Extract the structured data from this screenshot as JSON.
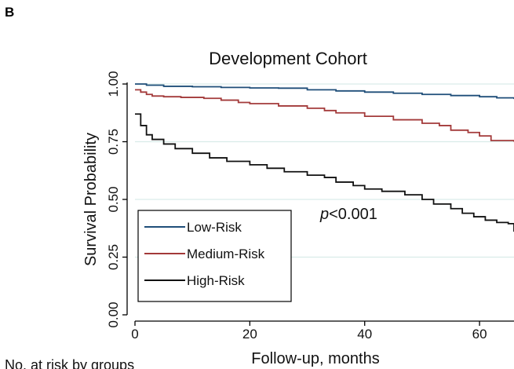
{
  "panel_label": "B",
  "footer_text": "No. at risk by groups",
  "pvalue": {
    "prefix": "p",
    "rest": "<0.001"
  },
  "chart_data": {
    "type": "line",
    "title": "Development Cohort",
    "xlabel": "Follow-up, months",
    "ylabel": "Survival Probability",
    "xlim": [
      0,
      66
    ],
    "ylim": [
      0,
      1
    ],
    "xticks": [
      0,
      20,
      40,
      60
    ],
    "xtick_labels": [
      "0",
      "20",
      "40",
      "60"
    ],
    "yticks": [
      0,
      0.25,
      0.5,
      0.75,
      1
    ],
    "ytick_labels": [
      "0.00",
      "0.25",
      "0.50",
      "0.75",
      "1.00"
    ],
    "grid": true,
    "legend_position": "bottom-left",
    "series": [
      {
        "name": "Low-Risk",
        "color": "#1f4e79",
        "step": true,
        "x": [
          0,
          2,
          5,
          10,
          15,
          20,
          25,
          30,
          35,
          40,
          45,
          50,
          55,
          60,
          63,
          66
        ],
        "y": [
          1.0,
          0.995,
          0.99,
          0.988,
          0.985,
          0.983,
          0.982,
          0.975,
          0.97,
          0.965,
          0.96,
          0.955,
          0.95,
          0.945,
          0.94,
          0.935
        ]
      },
      {
        "name": "Medium-Risk",
        "color": "#a33a3a",
        "step": true,
        "x": [
          0,
          1,
          2,
          3,
          5,
          8,
          12,
          15,
          18,
          20,
          25,
          30,
          33,
          35,
          40,
          45,
          50,
          53,
          55,
          58,
          60,
          62,
          66
        ],
        "y": [
          0.975,
          0.965,
          0.955,
          0.948,
          0.945,
          0.942,
          0.938,
          0.93,
          0.92,
          0.915,
          0.905,
          0.895,
          0.885,
          0.875,
          0.86,
          0.845,
          0.83,
          0.82,
          0.8,
          0.79,
          0.775,
          0.755,
          0.75
        ]
      },
      {
        "name": "High-Risk",
        "color": "#111111",
        "step": true,
        "x": [
          0,
          1,
          2,
          3,
          5,
          7,
          10,
          13,
          16,
          20,
          23,
          26,
          30,
          33,
          35,
          38,
          40,
          43,
          47,
          50,
          52,
          55,
          57,
          59,
          61,
          63,
          65,
          66
        ],
        "y": [
          0.87,
          0.82,
          0.78,
          0.76,
          0.74,
          0.72,
          0.7,
          0.68,
          0.665,
          0.65,
          0.635,
          0.62,
          0.605,
          0.595,
          0.575,
          0.56,
          0.545,
          0.535,
          0.52,
          0.5,
          0.48,
          0.46,
          0.44,
          0.425,
          0.41,
          0.4,
          0.395,
          0.36
        ]
      }
    ]
  }
}
